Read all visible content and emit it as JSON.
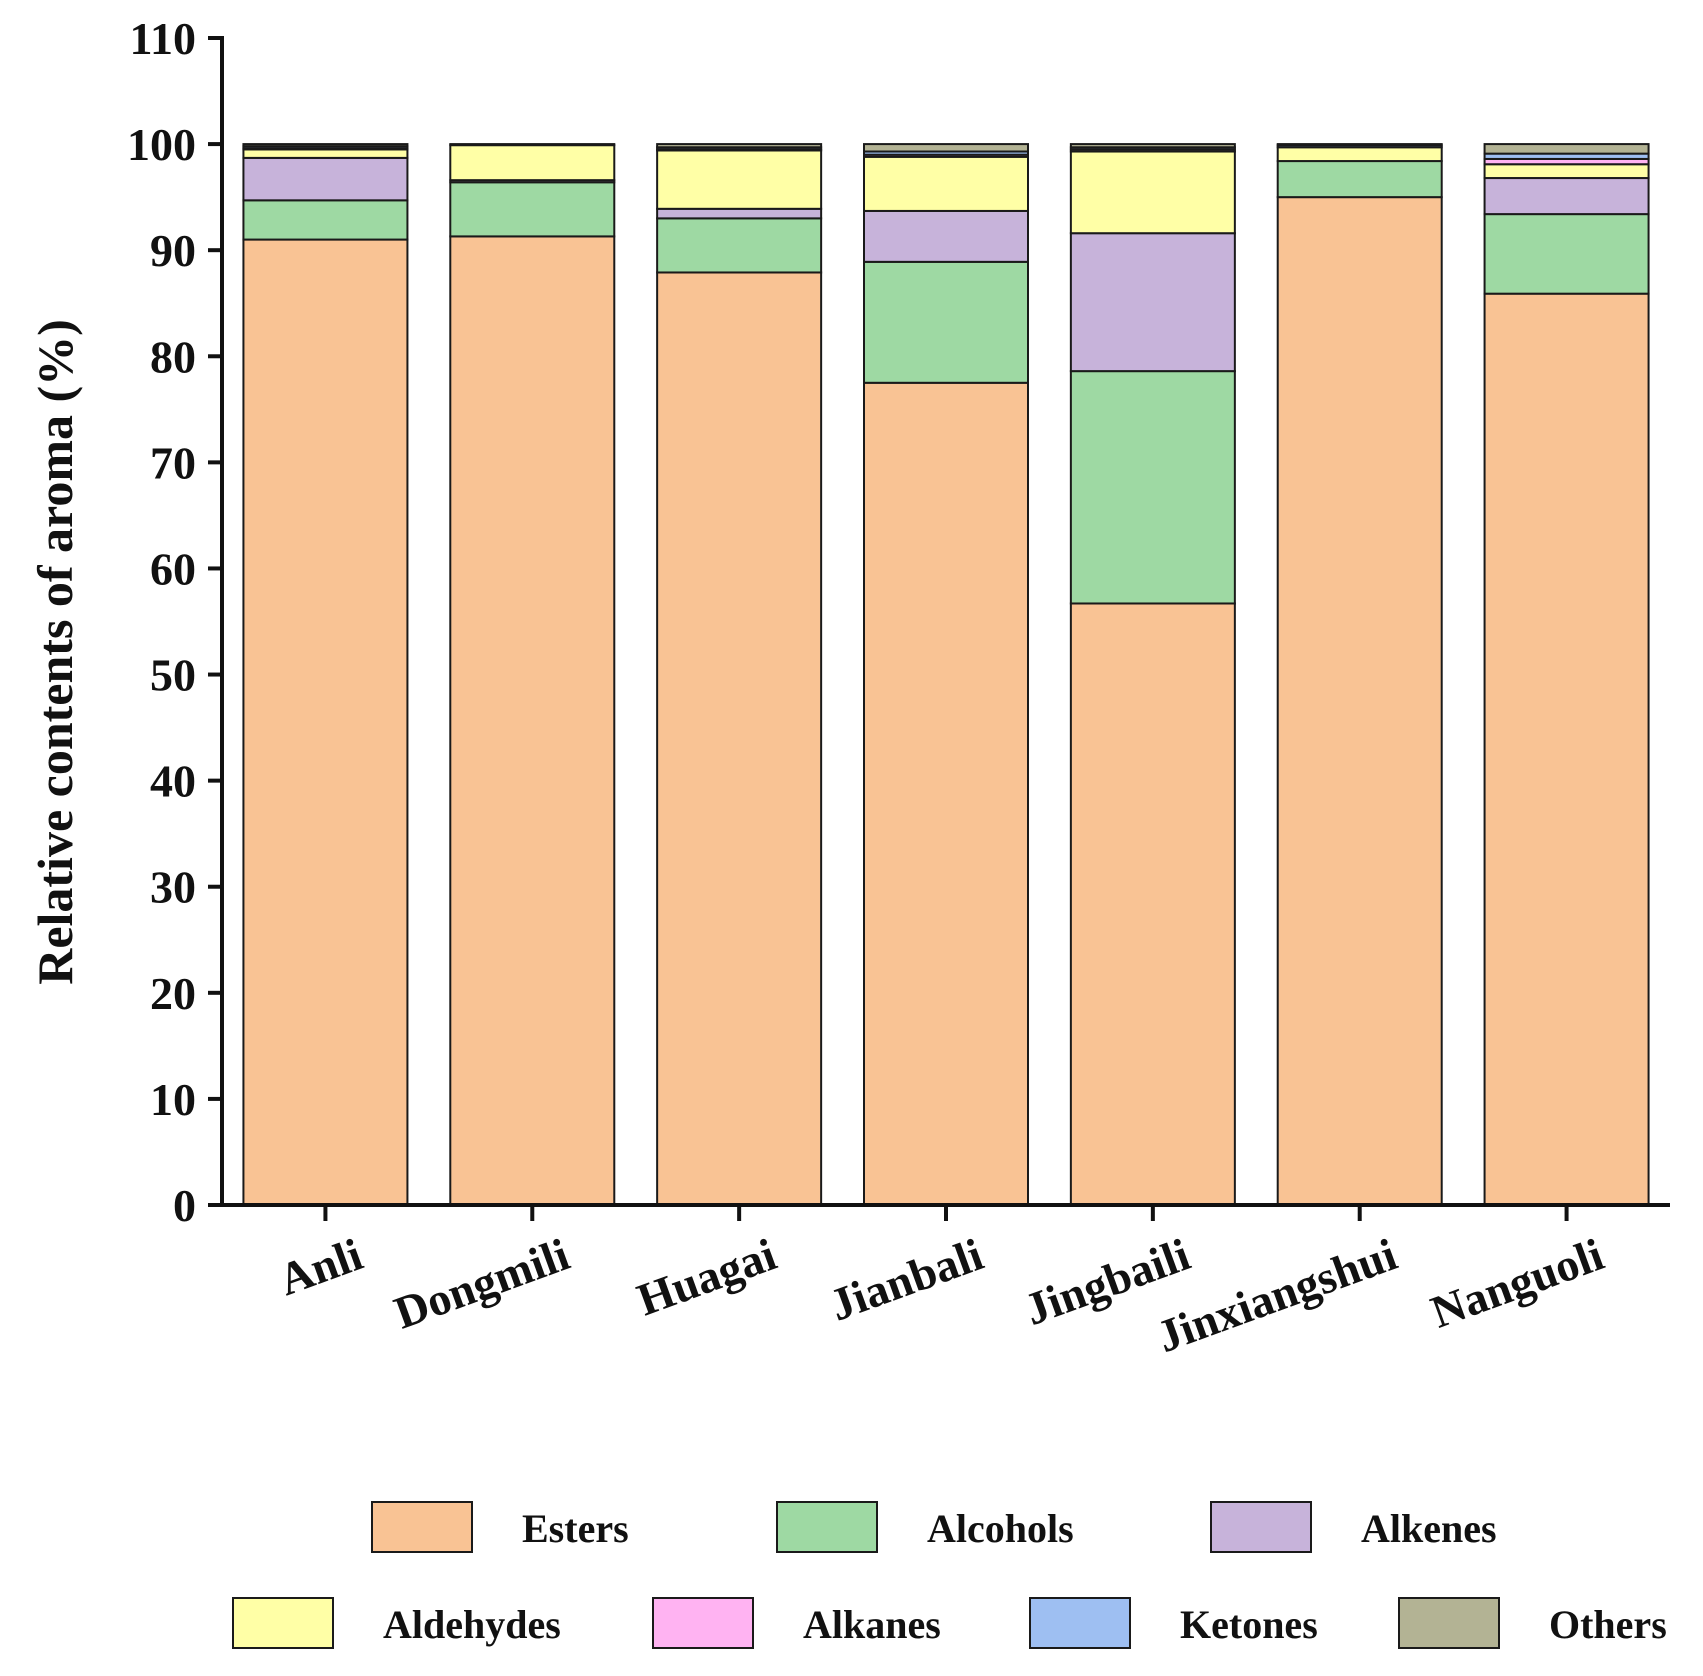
{
  "chart_data": {
    "type": "bar",
    "stacked": true,
    "title": "",
    "xlabel": "",
    "ylabel": "Relative contents of aroma (%)",
    "ylim": [
      0,
      110
    ],
    "yticks": [
      0,
      10,
      20,
      30,
      40,
      50,
      60,
      70,
      80,
      90,
      100,
      110
    ],
    "grid": false,
    "legend_position": "bottom",
    "categories": [
      "Anli",
      "Dongmili",
      "Huagai",
      "Jianbali",
      "Jingbaili",
      "Jinxiangshui",
      "Nanguoli"
    ],
    "series": [
      {
        "name": "Esters",
        "color": "#F9C394",
        "values": [
          91.0,
          91.3,
          87.9,
          77.5,
          56.7,
          95.0,
          85.9
        ]
      },
      {
        "name": "Alcohols",
        "color": "#9ED9A3",
        "values": [
          3.7,
          5.1,
          5.1,
          11.4,
          21.9,
          3.4,
          7.5
        ]
      },
      {
        "name": "Alkenes",
        "color": "#C7B3DA",
        "values": [
          4.0,
          0.2,
          0.9,
          4.8,
          13.0,
          0.0,
          3.4
        ]
      },
      {
        "name": "Aldehydes",
        "color": "#FFFFA6",
        "values": [
          0.8,
          3.3,
          5.5,
          5.1,
          7.7,
          1.3,
          1.3
        ]
      },
      {
        "name": "Alkanes",
        "color": "#FFB3F2",
        "values": [
          0.1,
          0.0,
          0.1,
          0.2,
          0.2,
          0.0,
          0.5
        ]
      },
      {
        "name": "Ketones",
        "color": "#9EBFF2",
        "values": [
          0.2,
          0.1,
          0.2,
          0.3,
          0.2,
          0.2,
          0.5
        ]
      },
      {
        "name": "Others",
        "color": "#B3B394",
        "values": [
          0.2,
          0.0,
          0.3,
          0.7,
          0.3,
          0.1,
          0.9
        ]
      }
    ]
  }
}
